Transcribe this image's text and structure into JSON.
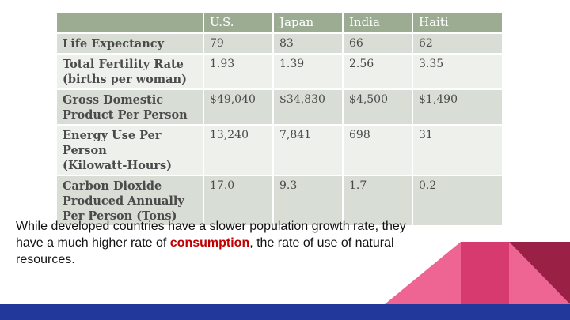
{
  "table": {
    "headers": [
      "",
      "U.S.",
      "Japan",
      "India",
      "Haiti"
    ],
    "rows": [
      {
        "label": "Life Expectancy",
        "values": [
          "79",
          "83",
          "66",
          "62"
        ]
      },
      {
        "label": "Total Fertility Rate\n(births per woman)",
        "values": [
          "1.93",
          "1.39",
          "2.56",
          "3.35"
        ]
      },
      {
        "label": "Gross Domestic\nProduct Per Person",
        "values": [
          "$49,040",
          "$34,830",
          "$4,500",
          "$1,490"
        ]
      },
      {
        "label": "Energy Use Per Person\n(Kilowatt-Hours)",
        "values": [
          "13,240",
          "7,841",
          "698",
          "31"
        ]
      },
      {
        "label": "Carbon Dioxide\nProduced Annually\nPer Person (Tons)",
        "values": [
          "17.0",
          "9.3",
          "1.7",
          "0.2"
        ]
      }
    ]
  },
  "caption": {
    "before": "While developed countries have a slower population growth rate, they have a much higher rate of ",
    "highlight": "consumption",
    "after": ", the rate of use of natural resources."
  },
  "colors": {
    "table_header": "#9bac93",
    "row_dark": "#d8ddd5",
    "row_light": "#eef0ec",
    "highlight": "#c00000",
    "bottom_bar": "#22389a",
    "pink_light": "#ee6594",
    "pink_dark": "#d63a6e",
    "maroon": "#9b2045"
  }
}
